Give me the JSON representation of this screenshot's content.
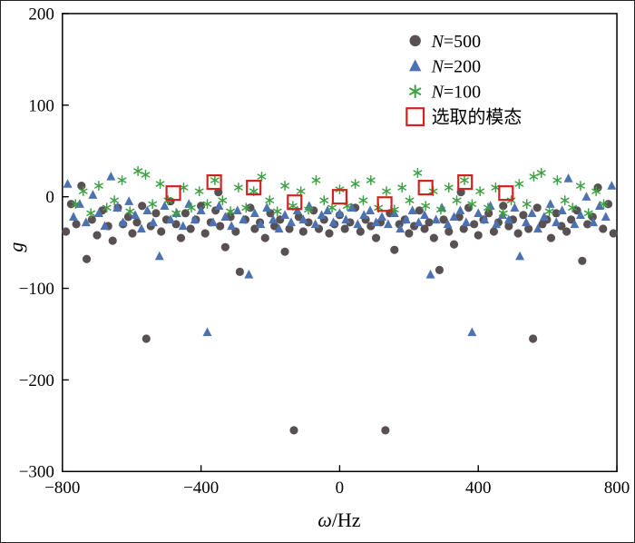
{
  "chart_data": {
    "type": "scatter",
    "title": "",
    "xlabel": {
      "symbol": "ω",
      "rest": "/Hz"
    },
    "ylabel": "g",
    "xlim": [
      -800,
      800
    ],
    "ylim": [
      -300,
      200
    ],
    "grid": false,
    "legend_position": "top-right-inside",
    "xticks": [
      -800,
      -400,
      0,
      400,
      800
    ],
    "yticks": [
      -300,
      -200,
      -100,
      0,
      100,
      200
    ],
    "xtick_labels": [
      "−800",
      "−400",
      "0",
      "400",
      "800"
    ],
    "ytick_labels": [
      "−300",
      "−200",
      "−100",
      "0",
      "100",
      "200"
    ],
    "series": [
      {
        "name": "N=500",
        "marker": "circle",
        "color": "#595051",
        "points": [
          [
            -790,
            -38
          ],
          [
            -775,
            -8
          ],
          [
            -760,
            -30
          ],
          [
            -745,
            12
          ],
          [
            -730,
            -68
          ],
          [
            -715,
            -25
          ],
          [
            -700,
            -42
          ],
          [
            -685,
            -15
          ],
          [
            -668,
            -32
          ],
          [
            -655,
            -48
          ],
          [
            -640,
            -12
          ],
          [
            -625,
            -30
          ],
          [
            -610,
            -22
          ],
          [
            -598,
            -40
          ],
          [
            -585,
            -28
          ],
          [
            -570,
            -10
          ],
          [
            -558,
            -155
          ],
          [
            -545,
            -32
          ],
          [
            -530,
            -18
          ],
          [
            -515,
            -38
          ],
          [
            -500,
            -25
          ],
          [
            -488,
            -5
          ],
          [
            -472,
            -30
          ],
          [
            -458,
            -45
          ],
          [
            -445,
            -18
          ],
          [
            -430,
            -35
          ],
          [
            -415,
            -25
          ],
          [
            -400,
            -10
          ],
          [
            -388,
            -40
          ],
          [
            -372,
            -28
          ],
          [
            -358,
            -15
          ],
          [
            -350,
            5
          ],
          [
            -345,
            -32
          ],
          [
            -330,
            -55
          ],
          [
            -315,
            -22
          ],
          [
            -300,
            -38
          ],
          [
            -288,
            -82
          ],
          [
            -272,
            -25
          ],
          [
            -258,
            -12
          ],
          [
            -245,
            -35
          ],
          [
            -230,
            -28
          ],
          [
            -215,
            -45
          ],
          [
            -200,
            -18
          ],
          [
            -188,
            -32
          ],
          [
            -172,
            -25
          ],
          [
            -158,
            -60
          ],
          [
            -145,
            -35
          ],
          [
            -132,
            -255
          ],
          [
            -118,
            -22
          ],
          [
            -105,
            -38
          ],
          [
            -90,
            -28
          ],
          [
            -75,
            -15
          ],
          [
            -60,
            -35
          ],
          [
            -45,
            -25
          ],
          [
            -30,
            -40
          ],
          [
            -15,
            -30
          ],
          [
            0,
            -20
          ],
          [
            15,
            -35
          ],
          [
            30,
            -28
          ],
          [
            45,
            -12
          ],
          [
            60,
            -38
          ],
          [
            75,
            -25
          ],
          [
            90,
            -32
          ],
          [
            105,
            -45
          ],
          [
            118,
            -28
          ],
          [
            132,
            -255
          ],
          [
            145,
            -18
          ],
          [
            158,
            -58
          ],
          [
            172,
            -30
          ],
          [
            188,
            -25
          ],
          [
            200,
            -40
          ],
          [
            215,
            -32
          ],
          [
            230,
            -15
          ],
          [
            245,
            -35
          ],
          [
            258,
            -28
          ],
          [
            272,
            -45
          ],
          [
            288,
            -80
          ],
          [
            300,
            -25
          ],
          [
            315,
            -38
          ],
          [
            330,
            -52
          ],
          [
            345,
            -22
          ],
          [
            350,
            5
          ],
          [
            358,
            -35
          ],
          [
            372,
            -12
          ],
          [
            388,
            -30
          ],
          [
            400,
            -42
          ],
          [
            415,
            -25
          ],
          [
            430,
            -18
          ],
          [
            445,
            -38
          ],
          [
            458,
            -28
          ],
          [
            472,
            -10
          ],
          [
            488,
            -32
          ],
          [
            500,
            -25
          ],
          [
            515,
            -40
          ],
          [
            530,
            -20
          ],
          [
            545,
            -35
          ],
          [
            558,
            -155
          ],
          [
            570,
            -12
          ],
          [
            585,
            -30
          ],
          [
            598,
            -25
          ],
          [
            610,
            -45
          ],
          [
            625,
            -18
          ],
          [
            640,
            -32
          ],
          [
            655,
            -38
          ],
          [
            668,
            -25
          ],
          [
            685,
            -15
          ],
          [
            700,
            -70
          ],
          [
            715,
            -30
          ],
          [
            730,
            -22
          ],
          [
            745,
            10
          ],
          [
            760,
            -35
          ],
          [
            775,
            -8
          ],
          [
            790,
            -40
          ]
        ]
      },
      {
        "name": "N=200",
        "marker": "triangle",
        "color": "#4d72b2",
        "points": [
          [
            -785,
            14
          ],
          [
            -768,
            -22
          ],
          [
            -750,
            -8
          ],
          [
            -732,
            -28
          ],
          [
            -712,
            2
          ],
          [
            -695,
            -18
          ],
          [
            -678,
            -32
          ],
          [
            -660,
            22
          ],
          [
            -642,
            -12
          ],
          [
            -625,
            -28
          ],
          [
            -608,
            -5
          ],
          [
            -590,
            -20
          ],
          [
            -572,
            -35
          ],
          [
            -555,
            -15
          ],
          [
            -538,
            -28
          ],
          [
            -520,
            -65
          ],
          [
            -505,
            -10
          ],
          [
            -488,
            -25
          ],
          [
            -470,
            -18
          ],
          [
            -452,
            -32
          ],
          [
            -435,
            -8
          ],
          [
            -418,
            -25
          ],
          [
            -400,
            -15
          ],
          [
            -382,
            -148
          ],
          [
            -365,
            -28
          ],
          [
            -348,
            -10
          ],
          [
            -330,
            -22
          ],
          [
            -312,
            -32
          ],
          [
            -295,
            -15
          ],
          [
            -278,
            -25
          ],
          [
            -262,
            -85
          ],
          [
            -245,
            -18
          ],
          [
            -228,
            -30
          ],
          [
            -210,
            -12
          ],
          [
            -192,
            -25
          ],
          [
            -175,
            -35
          ],
          [
            -158,
            -20
          ],
          [
            -140,
            -28
          ],
          [
            -122,
            -15
          ],
          [
            -105,
            -25
          ],
          [
            -88,
            -10
          ],
          [
            -70,
            -30
          ],
          [
            -52,
            -20
          ],
          [
            -35,
            -15
          ],
          [
            -18,
            -28
          ],
          [
            0,
            -18
          ],
          [
            18,
            -25
          ],
          [
            35,
            -12
          ],
          [
            52,
            -30
          ],
          [
            70,
            -20
          ],
          [
            88,
            -15
          ],
          [
            105,
            -28
          ],
          [
            122,
            -22
          ],
          [
            140,
            -30
          ],
          [
            158,
            -18
          ],
          [
            175,
            -35
          ],
          [
            192,
            -25
          ],
          [
            210,
            -15
          ],
          [
            228,
            -28
          ],
          [
            245,
            -20
          ],
          [
            262,
            -85
          ],
          [
            278,
            -25
          ],
          [
            295,
            -12
          ],
          [
            312,
            -30
          ],
          [
            330,
            -22
          ],
          [
            348,
            -15
          ],
          [
            365,
            -28
          ],
          [
            382,
            -148
          ],
          [
            400,
            -18
          ],
          [
            418,
            -25
          ],
          [
            435,
            -10
          ],
          [
            452,
            -30
          ],
          [
            470,
            -20
          ],
          [
            488,
            -25
          ],
          [
            505,
            -12
          ],
          [
            520,
            -65
          ],
          [
            538,
            -28
          ],
          [
            555,
            -18
          ],
          [
            572,
            -35
          ],
          [
            590,
            -22
          ],
          [
            608,
            -8
          ],
          [
            625,
            -28
          ],
          [
            642,
            -15
          ],
          [
            660,
            20
          ],
          [
            678,
            -30
          ],
          [
            695,
            -20
          ],
          [
            712,
            0
          ],
          [
            732,
            -28
          ],
          [
            750,
            -10
          ],
          [
            768,
            -22
          ],
          [
            785,
            12
          ]
        ]
      },
      {
        "name": "N=100",
        "marker": "asterisk",
        "color": "#3fa145",
        "points": [
          [
            -762,
            -8
          ],
          [
            -740,
            6
          ],
          [
            -718,
            -18
          ],
          [
            -695,
            12
          ],
          [
            -672,
            -12
          ],
          [
            -650,
            -4
          ],
          [
            -628,
            18
          ],
          [
            -605,
            -16
          ],
          [
            -582,
            28
          ],
          [
            -560,
            24
          ],
          [
            -540,
            -8
          ],
          [
            -518,
            14
          ],
          [
            -495,
            -4
          ],
          [
            -472,
            -18
          ],
          [
            -450,
            10
          ],
          [
            -428,
            -12
          ],
          [
            -405,
            6
          ],
          [
            -382,
            -8
          ],
          [
            -360,
            18
          ],
          [
            -338,
            -4
          ],
          [
            -315,
            -16
          ],
          [
            -292,
            10
          ],
          [
            -270,
            -12
          ],
          [
            -248,
            6
          ],
          [
            -225,
            22
          ],
          [
            -202,
            -4
          ],
          [
            -180,
            -16
          ],
          [
            -158,
            12
          ],
          [
            -135,
            -10
          ],
          [
            -112,
            6
          ],
          [
            -90,
            -14
          ],
          [
            -68,
            18
          ],
          [
            -45,
            -4
          ],
          [
            -22,
            -12
          ],
          [
            0,
            8
          ],
          [
            22,
            -10
          ],
          [
            45,
            14
          ],
          [
            68,
            -4
          ],
          [
            90,
            18
          ],
          [
            112,
            -12
          ],
          [
            135,
            6
          ],
          [
            158,
            -14
          ],
          [
            180,
            10
          ],
          [
            202,
            -4
          ],
          [
            225,
            26
          ],
          [
            248,
            -10
          ],
          [
            270,
            6
          ],
          [
            292,
            -14
          ],
          [
            315,
            10
          ],
          [
            338,
            -4
          ],
          [
            360,
            18
          ],
          [
            382,
            -8
          ],
          [
            405,
            6
          ],
          [
            428,
            -12
          ],
          [
            450,
            10
          ],
          [
            472,
            -18
          ],
          [
            495,
            -4
          ],
          [
            518,
            14
          ],
          [
            540,
            -8
          ],
          [
            560,
            22
          ],
          [
            582,
            26
          ],
          [
            605,
            -16
          ],
          [
            628,
            18
          ],
          [
            650,
            -4
          ],
          [
            672,
            -12
          ],
          [
            695,
            12
          ],
          [
            718,
            -18
          ],
          [
            740,
            6
          ],
          [
            762,
            -8
          ]
        ]
      },
      {
        "name": "选取的模态",
        "marker": "open-square",
        "color": "#d0231f",
        "points": [
          [
            -480,
            4
          ],
          [
            -362,
            16
          ],
          [
            -248,
            10
          ],
          [
            -130,
            -6
          ],
          [
            0,
            0
          ],
          [
            130,
            -8
          ],
          [
            248,
            10
          ],
          [
            362,
            16
          ],
          [
            480,
            4
          ]
        ]
      }
    ]
  }
}
